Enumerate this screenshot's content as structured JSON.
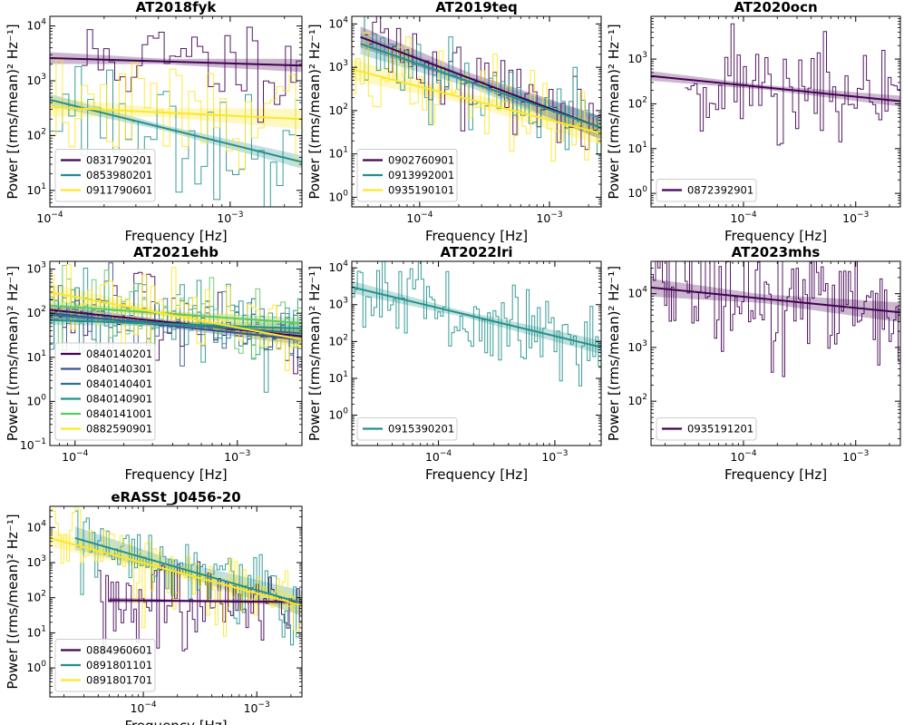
{
  "chart_data": [
    {
      "type": "line",
      "title": "AT2018fyk",
      "xlabel": "Frequency [Hz]",
      "ylabel": "Power [(rms/mean)² Hz⁻¹]",
      "xlim": [
        0.0001,
        0.0025
      ],
      "ylim": [
        5,
        15000
      ],
      "xticks": [
        {
          "v": 0.0001,
          "b": "10",
          "e": "−4"
        },
        {
          "v": 0.001,
          "b": "10",
          "e": "−3"
        }
      ],
      "yticks": [
        {
          "v": 10,
          "b": "10",
          "e": "1"
        },
        {
          "v": 100,
          "b": "10",
          "e": "2"
        },
        {
          "v": 1000,
          "b": "10",
          "e": "3"
        },
        {
          "v": 10000,
          "b": "10",
          "e": "4"
        }
      ],
      "series": [
        {
          "name": "0831790201",
          "color": "#440154",
          "fit": {
            "f0": 0.0001,
            "p0": 2600,
            "f1": 0.0025,
            "p1": 1900,
            "band": 1.3
          },
          "data": {
            "start": 0.00015,
            "end": 0.0025,
            "n": 40,
            "seed": 11,
            "spread": 1.0,
            "f0": 0.0001,
            "p0": 2600,
            "f1": 0.0025,
            "p1": 1900
          }
        },
        {
          "name": "0853980201",
          "color": "#21918c",
          "fit": {
            "f0": 0.0001,
            "p0": 450,
            "f1": 0.0025,
            "p1": 33,
            "band": 1.3
          },
          "data": {
            "start": 0.0001,
            "end": 0.0025,
            "n": 40,
            "seed": 23,
            "spread": 1.2,
            "f0": 0.0001,
            "p0": 450,
            "f1": 0.0025,
            "p1": 33
          }
        },
        {
          "name": "0911790601",
          "color": "#fde725",
          "fit": {
            "f0": 0.0001,
            "p0": 330,
            "f1": 0.0025,
            "p1": 200,
            "band": 1.5
          },
          "data": {
            "start": 0.0001,
            "end": 0.0025,
            "n": 40,
            "seed": 37,
            "spread": 1.1,
            "f0": 0.0001,
            "p0": 330,
            "f1": 0.0025,
            "p1": 200
          }
        }
      ]
    },
    {
      "type": "line",
      "title": "AT2019teq",
      "xlabel": "Frequency [Hz]",
      "ylabel": "Power [(rms/mean)² Hz⁻¹]",
      "xlim": [
        3e-05,
        0.0025
      ],
      "ylim": [
        0.6,
        15000
      ],
      "xticks": [
        {
          "v": 0.0001,
          "b": "10",
          "e": "−4"
        },
        {
          "v": 0.001,
          "b": "10",
          "e": "−3"
        }
      ],
      "yticks": [
        {
          "v": 1,
          "b": "10",
          "e": "0"
        },
        {
          "v": 10,
          "b": "10",
          "e": "1"
        },
        {
          "v": 100,
          "b": "10",
          "e": "2"
        },
        {
          "v": 1000,
          "b": "10",
          "e": "3"
        },
        {
          "v": 10000,
          "b": "10",
          "e": "4"
        }
      ],
      "series": [
        {
          "name": "0902760901",
          "color": "#440154",
          "fit": {
            "f0": 3.5e-05,
            "p0": 5000,
            "f1": 0.0025,
            "p1": 40,
            "band": 1.8
          },
          "data": {
            "start": 3.5e-05,
            "end": 0.0025,
            "n": 60,
            "seed": 41,
            "spread": 1.3,
            "f0": 3.5e-05,
            "p0": 5000,
            "f1": 0.0025,
            "p1": 40
          }
        },
        {
          "name": "0913992001",
          "color": "#21918c",
          "fit": {
            "f0": 3.5e-05,
            "p0": 3500,
            "f1": 0.0025,
            "p1": 40,
            "band": 1.8
          },
          "data": {
            "start": 3.5e-05,
            "end": 0.0025,
            "n": 60,
            "seed": 53,
            "spread": 1.3,
            "f0": 3.5e-05,
            "p0": 3500,
            "f1": 0.0025,
            "p1": 40
          }
        },
        {
          "name": "0935190101",
          "color": "#fde725",
          "fit": {
            "f0": 3e-05,
            "p0": 900,
            "f1": 0.0025,
            "p1": 30,
            "band": 1.8
          },
          "data": {
            "start": 3e-05,
            "end": 0.0025,
            "n": 60,
            "seed": 67,
            "spread": 1.3,
            "f0": 3e-05,
            "p0": 900,
            "f1": 0.0025,
            "p1": 30
          }
        }
      ]
    },
    {
      "type": "line",
      "title": "AT2020ocn",
      "xlabel": "Frequency [Hz]",
      "ylabel": "",
      "xlim": [
        1.5e-05,
        0.0025
      ],
      "ylim": [
        0.5,
        9000
      ],
      "xticks": [
        {
          "v": 0.0001,
          "b": "10",
          "e": "−4"
        },
        {
          "v": 0.001,
          "b": "10",
          "e": "−3"
        }
      ],
      "yticks": [
        {
          "v": 1,
          "b": "10",
          "e": "0"
        },
        {
          "v": 10,
          "b": "10",
          "e": "1"
        },
        {
          "v": 100,
          "b": "10",
          "e": "2"
        },
        {
          "v": 1000,
          "b": "10",
          "e": "3"
        }
      ],
      "series": [
        {
          "name": "0872392901",
          "color": "#440154",
          "fit": {
            "f0": 1.5e-05,
            "p0": 420,
            "f1": 0.0025,
            "p1": 115,
            "band": 1.3
          },
          "data": {
            "start": 3e-05,
            "end": 0.0025,
            "n": 70,
            "seed": 71,
            "spread": 1.4,
            "f0": 1.5e-05,
            "p0": 420,
            "f1": 0.0025,
            "p1": 115
          }
        }
      ]
    },
    {
      "type": "line",
      "title": "AT2021ehb",
      "xlabel": "Frequency [Hz]",
      "ylabel": "Power [(rms/mean)² Hz⁻¹]",
      "xlim": [
        7e-05,
        0.0025
      ],
      "ylim": [
        0.1,
        1500
      ],
      "xticks": [
        {
          "v": 0.0001,
          "b": "10",
          "e": "−4"
        },
        {
          "v": 0.001,
          "b": "10",
          "e": "−3"
        }
      ],
      "yticks": [
        {
          "v": 0.1,
          "b": "10",
          "e": "−1"
        },
        {
          "v": 1,
          "b": "10",
          "e": "0"
        },
        {
          "v": 10,
          "b": "10",
          "e": "1"
        },
        {
          "v": 100,
          "b": "10",
          "e": "2"
        },
        {
          "v": 1000,
          "b": "10",
          "e": "3"
        }
      ],
      "series": [
        {
          "name": "0840140201",
          "color": "#440154",
          "fit": {
            "f0": 7e-05,
            "p0": 120,
            "f1": 0.0025,
            "p1": 30,
            "band": 1.3
          },
          "data": {
            "start": 7e-05,
            "end": 0.0025,
            "n": 60,
            "seed": 83,
            "spread": 1.0,
            "f0": 7e-05,
            "p0": 120,
            "f1": 0.0025,
            "p1": 30
          }
        },
        {
          "name": "0840140301",
          "color": "#3b528b",
          "fit": {
            "f0": 7e-05,
            "p0": 100,
            "f1": 0.0025,
            "p1": 25,
            "band": 1.3
          },
          "data": {
            "start": 7e-05,
            "end": 0.0025,
            "n": 60,
            "seed": 97,
            "spread": 1.0,
            "f0": 7e-05,
            "p0": 100,
            "f1": 0.0025,
            "p1": 25
          }
        },
        {
          "name": "0840140401",
          "color": "#2c728e",
          "fit": {
            "f0": 7e-05,
            "p0": 90,
            "f1": 0.0025,
            "p1": 35,
            "band": 1.3
          },
          "data": {
            "start": 7e-05,
            "end": 0.0025,
            "n": 60,
            "seed": 101,
            "spread": 1.0,
            "f0": 7e-05,
            "p0": 90,
            "f1": 0.0025,
            "p1": 35
          }
        },
        {
          "name": "0840140901",
          "color": "#21918c",
          "fit": {
            "f0": 7e-05,
            "p0": 70,
            "f1": 0.0025,
            "p1": 45,
            "band": 1.3
          },
          "data": {
            "start": 7e-05,
            "end": 0.0025,
            "n": 60,
            "seed": 113,
            "spread": 1.0,
            "f0": 7e-05,
            "p0": 70,
            "f1": 0.0025,
            "p1": 45
          }
        },
        {
          "name": "0840141001",
          "color": "#5ec962",
          "fit": {
            "f0": 7e-05,
            "p0": 150,
            "f1": 0.0025,
            "p1": 60,
            "band": 1.3
          },
          "data": {
            "start": 7e-05,
            "end": 0.0025,
            "n": 60,
            "seed": 127,
            "spread": 1.0,
            "f0": 7e-05,
            "p0": 150,
            "f1": 0.0025,
            "p1": 60
          }
        },
        {
          "name": "0882590901",
          "color": "#fde725",
          "fit": {
            "f0": 7e-05,
            "p0": 300,
            "f1": 0.0025,
            "p1": 25,
            "band": 1.6
          },
          "data": {
            "start": 7e-05,
            "end": 0.0025,
            "n": 60,
            "seed": 131,
            "spread": 1.1,
            "f0": 7e-05,
            "p0": 300,
            "f1": 0.0025,
            "p1": 25
          }
        }
      ]
    },
    {
      "type": "line",
      "title": "AT2022lri",
      "xlabel": "Frequency [Hz]",
      "ylabel": "",
      "xlim": [
        1.8e-05,
        0.0025
      ],
      "ylim": [
        0.15,
        15000
      ],
      "xticks": [
        {
          "v": 0.0001,
          "b": "10",
          "e": "−4"
        },
        {
          "v": 0.001,
          "b": "10",
          "e": "−3"
        }
      ],
      "yticks": [
        {
          "v": 1,
          "b": "10",
          "e": "0"
        },
        {
          "v": 10,
          "b": "10",
          "e": "1"
        },
        {
          "v": 100,
          "b": "10",
          "e": "2"
        },
        {
          "v": 1000,
          "b": "10",
          "e": "3"
        },
        {
          "v": 10000,
          "b": "10",
          "e": "4"
        }
      ],
      "series": [
        {
          "name": "0915390201",
          "color": "#21918c",
          "fit": {
            "f0": 1.8e-05,
            "p0": 3000,
            "f1": 0.0025,
            "p1": 70,
            "band": 1.5
          },
          "data": {
            "start": 1.8e-05,
            "end": 0.0025,
            "n": 90,
            "seed": 137,
            "spread": 1.4,
            "f0": 1.8e-05,
            "p0": 3000,
            "f1": 0.0025,
            "p1": 70
          }
        }
      ]
    },
    {
      "type": "line",
      "title": "AT2023mhs",
      "xlabel": "Frequency [Hz]",
      "ylabel": "",
      "xlim": [
        1.5e-05,
        0.0025
      ],
      "ylim": [
        15,
        40000
      ],
      "xticks": [
        {
          "v": 0.0001,
          "b": "10",
          "e": "−4"
        },
        {
          "v": 0.001,
          "b": "10",
          "e": "−3"
        }
      ],
      "yticks": [
        {
          "v": 100,
          "b": "10",
          "e": "2"
        },
        {
          "v": 1000,
          "b": "10",
          "e": "3"
        },
        {
          "v": 10000,
          "b": "10",
          "e": "4"
        }
      ],
      "series": [
        {
          "name": "0935191201",
          "color": "#440154",
          "fit": {
            "f0": 1.5e-05,
            "p0": 13000,
            "f1": 0.0025,
            "p1": 4500,
            "band": 1.5
          },
          "data": {
            "start": 1.5e-05,
            "end": 0.0025,
            "n": 110,
            "seed": 149,
            "spread": 1.4,
            "f0": 1.5e-05,
            "p0": 13000,
            "f1": 0.0025,
            "p1": 4500
          }
        }
      ]
    },
    {
      "type": "line",
      "title": "eRASSt_J0456-20",
      "xlabel": "Frequency [Hz]",
      "ylabel": "Power [(rms/mean)² Hz⁻¹]",
      "xlim": [
        1.5e-05,
        0.0025
      ],
      "ylim": [
        0.15,
        40000
      ],
      "xticks": [
        {
          "v": 0.0001,
          "b": "10",
          "e": "−4"
        },
        {
          "v": 0.001,
          "b": "10",
          "e": "−3"
        }
      ],
      "yticks": [
        {
          "v": 1,
          "b": "10",
          "e": "0"
        },
        {
          "v": 10,
          "b": "10",
          "e": "1"
        },
        {
          "v": 100,
          "b": "10",
          "e": "2"
        },
        {
          "v": 1000,
          "b": "10",
          "e": "3"
        },
        {
          "v": 10000,
          "b": "10",
          "e": "4"
        }
      ],
      "series": [
        {
          "name": "0884960601",
          "color": "#440154",
          "fit": {
            "f0": 5e-05,
            "p0": 85,
            "f1": 0.0025,
            "p1": 75,
            "band": 1.2
          },
          "data": {
            "start": 4e-05,
            "end": 0.0025,
            "n": 80,
            "seed": 151,
            "spread": 1.3,
            "f0": 4e-05,
            "p0": 85,
            "f1": 0.0025,
            "p1": 75
          }
        },
        {
          "name": "0891801101",
          "color": "#21918c",
          "fit": {
            "f0": 2.5e-05,
            "p0": 5000,
            "f1": 0.0025,
            "p1": 70,
            "band": 2.2
          },
          "data": {
            "start": 2.5e-05,
            "end": 0.0025,
            "n": 80,
            "seed": 163,
            "spread": 1.3,
            "f0": 2.5e-05,
            "p0": 5000,
            "f1": 0.0025,
            "p1": 70
          }
        },
        {
          "name": "0891801701",
          "color": "#fde725",
          "fit": {
            "f0": 1.5e-05,
            "p0": 5000,
            "f1": 0.0025,
            "p1": 60,
            "band": 1.8
          },
          "data": {
            "start": 1.5e-05,
            "end": 0.0025,
            "n": 90,
            "seed": 173,
            "spread": 1.3,
            "f0": 1.5e-05,
            "p0": 5000,
            "f1": 0.0025,
            "p1": 60
          }
        }
      ]
    }
  ]
}
